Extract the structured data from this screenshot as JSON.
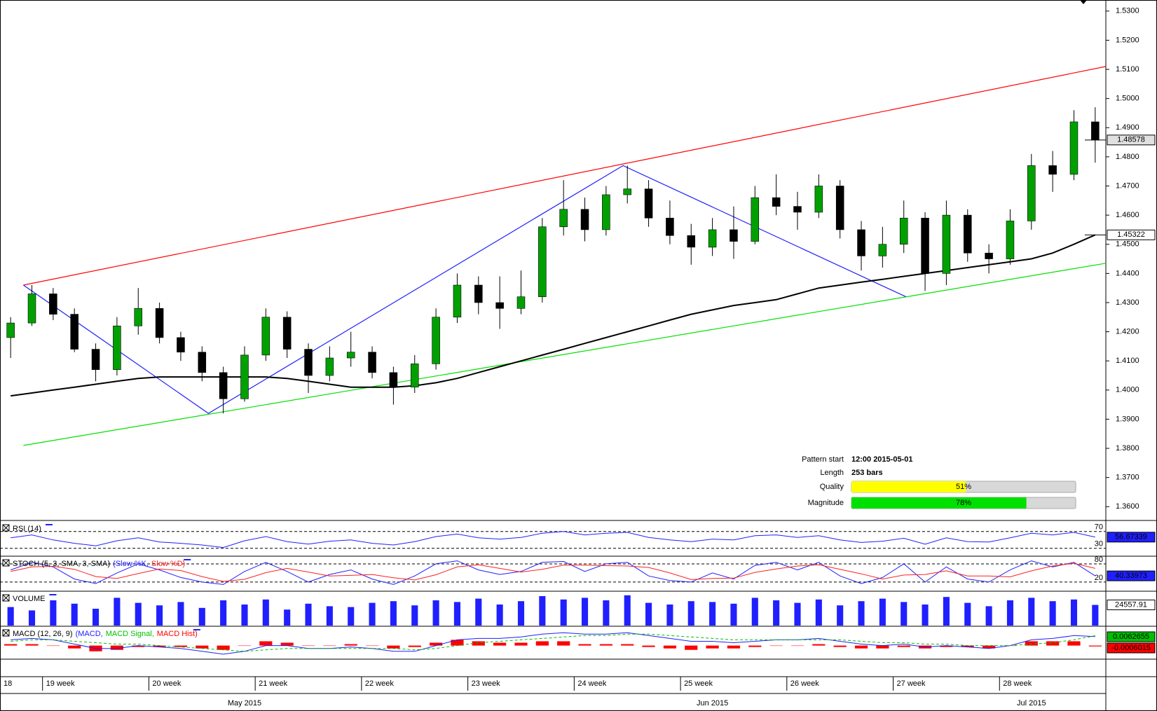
{
  "chart_data": [
    {
      "type": "candlestick",
      "categories": [
        "18",
        null,
        "19 week",
        null,
        null,
        null,
        null,
        "20 week",
        null,
        null,
        null,
        null,
        "21 week",
        null,
        null,
        null,
        null,
        "22 week",
        null,
        null,
        null,
        null,
        "23 week",
        null,
        null,
        null,
        null,
        "24 week",
        null,
        null,
        null,
        null,
        "25 week",
        null,
        null,
        null,
        null,
        "26 week",
        null,
        null,
        null,
        null,
        "27 week",
        null,
        null,
        null,
        null,
        "28 week",
        null,
        null,
        null,
        null
      ],
      "months": [
        null,
        null,
        null,
        null,
        null,
        null,
        null,
        null,
        null,
        null,
        null,
        "May 2015",
        null,
        null,
        null,
        null,
        null,
        null,
        null,
        null,
        null,
        null,
        null,
        null,
        null,
        null,
        null,
        null,
        null,
        null,
        null,
        null,
        null,
        "Jun 2015",
        null,
        null,
        null,
        null,
        null,
        null,
        null,
        null,
        null,
        null,
        null,
        null,
        null,
        null,
        "Jul 2015",
        null,
        null,
        null
      ],
      "open": [
        1.418,
        1.423,
        1.433,
        1.426,
        1.414,
        1.407,
        1.422,
        1.428,
        1.418,
        1.413,
        1.406,
        1.397,
        1.412,
        1.425,
        1.414,
        1.405,
        1.411,
        1.413,
        1.406,
        1.401,
        1.409,
        1.425,
        1.436,
        1.43,
        1.428,
        1.432,
        1.456,
        1.462,
        1.455,
        1.467,
        1.469,
        1.459,
        1.453,
        1.449,
        1.455,
        1.451,
        1.466,
        1.463,
        1.461,
        1.47,
        1.455,
        1.446,
        1.45,
        1.459,
        1.44,
        1.46,
        1.447,
        1.445,
        1.458,
        1.477,
        1.474,
        1.492
      ],
      "high": [
        1.425,
        1.436,
        1.435,
        1.428,
        1.416,
        1.425,
        1.435,
        1.43,
        1.42,
        1.415,
        1.408,
        1.415,
        1.428,
        1.427,
        1.416,
        1.415,
        1.42,
        1.415,
        1.408,
        1.412,
        1.428,
        1.44,
        1.439,
        1.439,
        1.441,
        1.459,
        1.472,
        1.466,
        1.47,
        1.477,
        1.472,
        1.465,
        1.457,
        1.459,
        1.463,
        1.47,
        1.474,
        1.468,
        1.474,
        1.472,
        1.458,
        1.456,
        1.465,
        1.461,
        1.465,
        1.462,
        1.45,
        1.462,
        1.481,
        1.482,
        1.496,
        1.497
      ],
      "low": [
        1.411,
        1.422,
        1.424,
        1.413,
        1.403,
        1.405,
        1.419,
        1.416,
        1.41,
        1.403,
        1.392,
        1.396,
        1.41,
        1.411,
        1.399,
        1.403,
        1.408,
        1.404,
        1.395,
        1.399,
        1.407,
        1.423,
        1.426,
        1.421,
        1.426,
        1.43,
        1.453,
        1.451,
        1.453,
        1.464,
        1.456,
        1.45,
        1.443,
        1.446,
        1.445,
        1.45,
        1.46,
        1.455,
        1.459,
        1.452,
        1.441,
        1.442,
        1.447,
        1.434,
        1.436,
        1.444,
        1.44,
        1.443,
        1.455,
        1.468,
        1.472,
        1.478
      ],
      "close": [
        1.423,
        1.433,
        1.426,
        1.414,
        1.407,
        1.422,
        1.428,
        1.418,
        1.413,
        1.406,
        1.397,
        1.412,
        1.425,
        1.414,
        1.405,
        1.411,
        1.413,
        1.406,
        1.401,
        1.409,
        1.425,
        1.436,
        1.43,
        1.428,
        1.432,
        1.456,
        1.462,
        1.455,
        1.467,
        1.469,
        1.459,
        1.453,
        1.449,
        1.455,
        1.451,
        1.466,
        1.463,
        1.461,
        1.47,
        1.455,
        1.446,
        1.45,
        1.459,
        1.44,
        1.46,
        1.447,
        1.445,
        1.458,
        1.477,
        1.474,
        1.492,
        1.48578
      ],
      "up_color": "#00a000",
      "down_color": "#000000",
      "series": [
        {
          "color": "#000000",
          "values": [
            1.398,
            1.399,
            1.4,
            1.401,
            1.402,
            1.403,
            1.404,
            1.4045,
            1.4045,
            1.4045,
            1.4045,
            1.4045,
            1.4045,
            1.404,
            1.403,
            1.402,
            1.401,
            1.401,
            1.401,
            1.4015,
            1.4025,
            1.404,
            1.406,
            1.408,
            1.41,
            1.412,
            1.414,
            1.416,
            1.418,
            1.42,
            1.422,
            1.424,
            1.426,
            1.4275,
            1.429,
            1.43,
            1.431,
            1.433,
            1.435,
            1.436,
            1.437,
            1.438,
            1.439,
            1.44,
            1.441,
            1.442,
            1.443,
            1.444,
            1.445,
            1.447,
            1.45,
            1.45322
          ]
        }
      ],
      "trend_lines": [
        {
          "color": "#ff0000",
          "x": [
            0.6,
            51.5
          ],
          "values": [
            1.436,
            1.511
          ]
        },
        {
          "color": "#00e000",
          "x": [
            0.6,
            51.5
          ],
          "values": [
            1.381,
            1.4435
          ]
        },
        {
          "color": "#2020ff",
          "x": [
            0.6,
            9.3,
            28.8,
            42.1
          ],
          "values": [
            1.436,
            1.392,
            1.477,
            1.432
          ]
        }
      ],
      "ylim": [
        1.3555,
        1.5338
      ],
      "yticks": [
        {
          "value": 1.36,
          "label": "1.3600"
        },
        {
          "value": 1.37,
          "label": "1.3700"
        },
        {
          "value": 1.38,
          "label": "1.3800"
        },
        {
          "value": 1.39,
          "label": "1.3900"
        },
        {
          "value": 1.4,
          "label": "1.4000"
        },
        {
          "value": 1.41,
          "label": "1.4100"
        },
        {
          "value": 1.42,
          "label": "1.4200"
        },
        {
          "value": 1.43,
          "label": "1.4300"
        },
        {
          "value": 1.44,
          "label": "1.4400"
        },
        {
          "value": 1.45,
          "label": "1.4500"
        },
        {
          "value": 1.46,
          "label": "1.4600"
        },
        {
          "value": 1.47,
          "label": "1.4700"
        },
        {
          "value": 1.48,
          "label": "1.4800"
        },
        {
          "value": 1.49,
          "label": "1.4900"
        },
        {
          "value": 1.5,
          "label": "1.5000"
        },
        {
          "value": 1.51,
          "label": "1.5100"
        },
        {
          "value": 1.52,
          "label": "1.5200"
        },
        {
          "value": 1.53,
          "label": "1.5300"
        }
      ],
      "pattern": {
        "start_label": "Pattern start",
        "start": "12:00 2015-05-01",
        "length_label": "Length",
        "length": "253 bars",
        "quality_label": "Quality",
        "quality": 51,
        "quality_text": "51%",
        "quality_color": "#ffff00",
        "magnitude_label": "Magnitude",
        "magnitude": 78,
        "magnitude_text": "78%",
        "magnitude_color": "#00e000",
        "xlim": [
          0,
          100
        ]
      }
    },
    {
      "type": "line",
      "title": "RSI (14)",
      "series": [
        {
          "color": "#2020ff",
          "values": [
            55,
            62,
            50,
            42,
            36,
            48,
            55,
            45,
            42,
            38,
            32,
            48,
            58,
            46,
            40,
            47,
            50,
            42,
            38,
            46,
            58,
            64,
            55,
            52,
            56,
            66,
            70,
            62,
            66,
            68,
            56,
            50,
            46,
            52,
            50,
            60,
            62,
            56,
            60,
            50,
            44,
            47,
            54,
            40,
            55,
            46,
            45,
            55,
            66,
            62,
            68,
            56.67339
          ]
        }
      ],
      "ylim": [
        13,
        93
      ],
      "yticks": [
        30,
        70
      ]
    },
    {
      "type": "line",
      "title": "STOCH (5, 3, SMA, 3, SMA)",
      "series": [
        {
          "name": "(Slow %K,",
          "color": "#2020ff",
          "values": [
            60,
            85,
            70,
            30,
            15,
            50,
            80,
            60,
            35,
            20,
            12,
            55,
            85,
            55,
            20,
            45,
            60,
            30,
            12,
            40,
            80,
            90,
            60,
            45,
            55,
            85,
            88,
            55,
            80,
            85,
            40,
            25,
            20,
            50,
            30,
            75,
            85,
            60,
            85,
            40,
            15,
            35,
            80,
            20,
            70,
            30,
            20,
            60,
            90,
            70,
            85,
            40.33973
          ]
        },
        {
          "name": "Slow %D)",
          "color": "#ff2020",
          "values": [
            55,
            70,
            72,
            62,
            38,
            32,
            48,
            63,
            58,
            38,
            22,
            29,
            51,
            65,
            53,
            40,
            42,
            45,
            34,
            27,
            44,
            70,
            77,
            65,
            53,
            62,
            76,
            76,
            74,
            73,
            68,
            50,
            28,
            32,
            33,
            52,
            63,
            73,
            77,
            62,
            47,
            30,
            43,
            45,
            57,
            40,
            40,
            37,
            57,
            73,
            82,
            65
          ]
        }
      ],
      "ylim": [
        -8,
        103
      ],
      "yticks": [
        20,
        80
      ]
    },
    {
      "type": "bar",
      "title": "VOLUME",
      "series": [
        {
          "color": "#2020ff",
          "values": [
            22000,
            18000,
            30000,
            26000,
            20000,
            33000,
            27000,
            24000,
            28000,
            21000,
            30000,
            25000,
            31000,
            19000,
            26000,
            23000,
            22000,
            27000,
            29000,
            24000,
            30000,
            28000,
            32000,
            25000,
            29000,
            35000,
            31000,
            33000,
            30000,
            36000,
            27000,
            25000,
            29000,
            28000,
            26000,
            33000,
            30000,
            27000,
            31000,
            24000,
            29000,
            32000,
            28000,
            25000,
            34000,
            27000,
            23000,
            30000,
            33000,
            29000,
            31000,
            24557.91
          ]
        }
      ],
      "ylim": [
        0,
        40000
      ]
    },
    {
      "type": "macd",
      "title": "MACD (12, 26, 9)",
      "series": [
        {
          "name": "(MACD,",
          "color": "#2020ff",
          "values": [
            0.004,
            0.005,
            0.004,
            0.001,
            -0.002,
            -0.002,
            0.0,
            -0.001,
            -0.002,
            -0.004,
            -0.006,
            -0.004,
            0.0,
            0.0,
            -0.002,
            -0.002,
            -0.001,
            -0.002,
            -0.004,
            -0.004,
            0.0,
            0.004,
            0.005,
            0.005,
            0.006,
            0.008,
            0.009,
            0.008,
            0.008,
            0.009,
            0.007,
            0.005,
            0.003,
            0.003,
            0.002,
            0.003,
            0.004,
            0.004,
            0.005,
            0.003,
            0.001,
            0.0,
            0.001,
            -0.001,
            0.0,
            -0.001,
            -0.002,
            0.0,
            0.004,
            0.005,
            0.007,
            0.0062655
          ]
        },
        {
          "name": "MACD Signal,",
          "color": "#00c000",
          "values": [
            0.003,
            0.004,
            0.004,
            0.003,
            0.002,
            0.001,
            0.001,
            0.0,
            -0.001,
            -0.002,
            -0.003,
            -0.004,
            -0.003,
            -0.002,
            -0.002,
            -0.002,
            -0.002,
            -0.002,
            -0.002,
            -0.003,
            -0.002,
            0.0,
            0.002,
            0.003,
            0.004,
            0.005,
            0.006,
            0.007,
            0.007,
            0.008,
            0.008,
            0.007,
            0.006,
            0.005,
            0.004,
            0.004,
            0.004,
            0.004,
            0.004,
            0.004,
            0.003,
            0.002,
            0.002,
            0.001,
            0.001,
            0.0,
            0.0,
            0.0,
            0.001,
            0.002,
            0.004,
            0.006867
          ]
        },
        {
          "name": "MACD Hist)",
          "color": "#ff0000",
          "values": [
            0.001,
            0.001,
            0.0,
            -0.002,
            -0.004,
            -0.003,
            -0.001,
            -0.001,
            -0.001,
            -0.002,
            -0.003,
            0.0,
            0.003,
            0.002,
            0.0,
            0.0,
            0.001,
            0.0,
            -0.002,
            -0.001,
            0.002,
            0.004,
            0.003,
            0.002,
            0.002,
            0.003,
            0.003,
            0.001,
            0.001,
            0.001,
            -0.001,
            -0.002,
            -0.003,
            -0.002,
            -0.002,
            -0.001,
            0.0,
            0.0,
            0.001,
            -0.001,
            -0.002,
            -0.002,
            -0.001,
            -0.002,
            -0.001,
            -0.001,
            -0.002,
            0.0,
            0.003,
            0.003,
            0.003,
            -0.0006015
          ]
        }
      ],
      "ylim": [
        -0.009,
        0.013
      ]
    }
  ]
}
